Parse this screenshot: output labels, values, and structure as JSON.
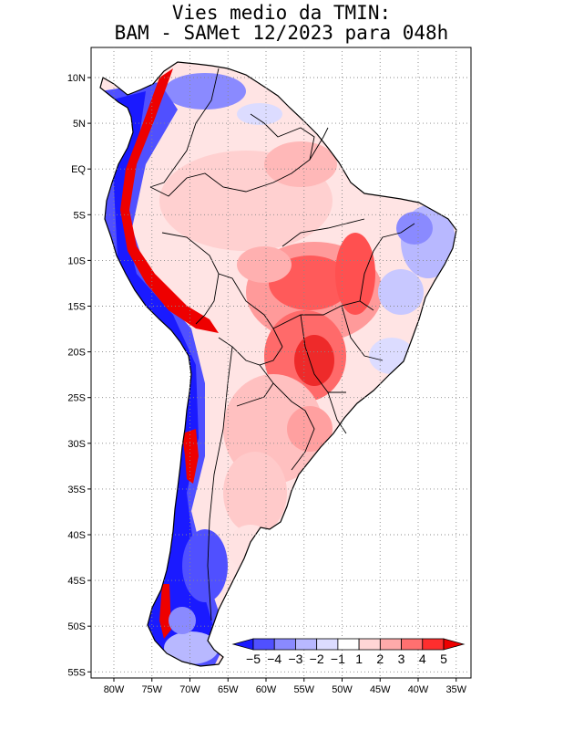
{
  "title": {
    "line1": "Vies medio da TMIN:",
    "line2": "BAM - SAMet 12/2023  para 048h"
  },
  "map": {
    "lat_labels": [
      "10N",
      "5N",
      "EQ",
      "5S",
      "10S",
      "15S",
      "20S",
      "25S",
      "30S",
      "35S",
      "40S",
      "45S",
      "50S",
      "55S"
    ],
    "lon_labels": [
      "80W",
      "75W",
      "70W",
      "65W",
      "60W",
      "55W",
      "50W",
      "45W",
      "40W",
      "35W"
    ],
    "grid": "dotted",
    "region": "South America"
  },
  "colorbar": {
    "labels": [
      "-5",
      "-4",
      "-3",
      "-2",
      "-1",
      "1",
      "2",
      "3",
      "4",
      "5"
    ],
    "colors": [
      "#1a1aff",
      "#5050ff",
      "#8a8aff",
      "#b8b8ff",
      "#dcdcff",
      "#ffffff",
      "#ffd6d6",
      "#ffaaaa",
      "#ff7070",
      "#ff2e2e",
      "#ee0000"
    ],
    "extend": "both"
  }
}
